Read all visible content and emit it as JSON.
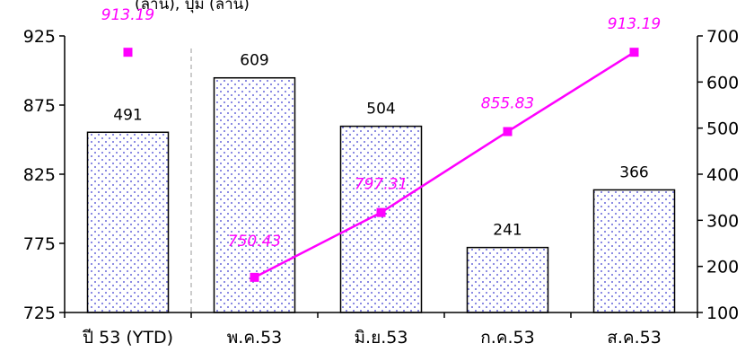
{
  "chart_data": {
    "type": "bar",
    "title": "",
    "title_partial_visible": "(ล้าน), ปุ่ม (ล้าน)",
    "categories": [
      "ปี 53 (YTD)",
      "พ.ค.53",
      "มิ.ย.53",
      "ก.ค.53",
      "ส.ค.53"
    ],
    "left_axis": {
      "ylim": [
        725,
        925
      ],
      "ticks": [
        "725",
        "775",
        "825",
        "875",
        "925"
      ]
    },
    "right_axis": {
      "ylim": [
        100,
        700
      ],
      "ticks": [
        "100",
        "200",
        "300",
        "400",
        "500",
        "600",
        "700"
      ]
    },
    "series": [
      {
        "kind": "bar",
        "axis": "right",
        "values": [
          491,
          609,
          504,
          241,
          366
        ],
        "labels": [
          "491",
          "609",
          "504",
          "241",
          "366"
        ],
        "color": "#000080",
        "pattern": "blue dotted fill"
      },
      {
        "kind": "line",
        "axis": "left",
        "values": [
          null,
          750.43,
          797.31,
          855.83,
          913.19
        ],
        "labels": [
          "",
          "750.43",
          "797.31",
          "855.83",
          "913.19"
        ],
        "color": "#ff00ff"
      },
      {
        "kind": "point",
        "axis": "left",
        "values": [
          913.19,
          null,
          null,
          null,
          null
        ],
        "labels": [
          "913.19",
          "",
          "",
          "",
          ""
        ],
        "color": "#ff00ff"
      }
    ],
    "separator_after_category": 0,
    "grid": false
  }
}
